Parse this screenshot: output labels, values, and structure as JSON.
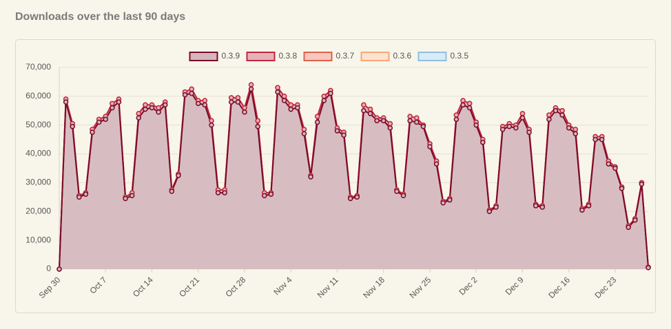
{
  "chart_data": {
    "type": "stacked_area",
    "title": "Downloads over the last 90 days",
    "categories": [
      "Sep 30",
      null,
      null,
      null,
      null,
      null,
      null,
      "Oct 7",
      null,
      null,
      null,
      null,
      null,
      null,
      "Oct 14",
      null,
      null,
      null,
      null,
      null,
      null,
      "Oct 21",
      null,
      null,
      null,
      null,
      null,
      null,
      "Oct 28",
      null,
      null,
      null,
      null,
      null,
      null,
      "Nov 4",
      null,
      null,
      null,
      null,
      null,
      null,
      "Nov 11",
      null,
      null,
      null,
      null,
      null,
      null,
      "Nov 18",
      null,
      null,
      null,
      null,
      null,
      null,
      "Nov 25",
      null,
      null,
      null,
      null,
      null,
      null,
      "Dec 2",
      null,
      null,
      null,
      null,
      null,
      null,
      "Dec 9",
      null,
      null,
      null,
      null,
      null,
      null,
      "Dec 16",
      null,
      null,
      null,
      null,
      null,
      null,
      "Dec 23",
      null,
      null,
      null,
      null,
      null
    ],
    "series": [
      {
        "name": "0.3.9",
        "color": "#7b0a2a",
        "fill": "#d3b7bc",
        "values": [
          0,
          58000,
          49500,
          25000,
          26000,
          47500,
          51000,
          52000,
          56000,
          58000,
          24500,
          25500,
          52500,
          55500,
          56000,
          54500,
          57000,
          27000,
          32500,
          60500,
          61000,
          57500,
          57000,
          50000,
          26500,
          26500,
          58000,
          58000,
          54500,
          62500,
          49500,
          25500,
          26000,
          61500,
          58500,
          55500,
          56000,
          47000,
          32000,
          51000,
          58500,
          61000,
          48000,
          46500,
          24500,
          25000,
          55000,
          54000,
          51500,
          51500,
          49000,
          27000,
          25500,
          51500,
          51000,
          49500,
          42500,
          36500,
          23000,
          24000,
          52000,
          57000,
          56000,
          50000,
          44000,
          20000,
          21500,
          48500,
          49500,
          49000,
          52500,
          47500,
          22000,
          21500,
          52000,
          55000,
          53500,
          49000,
          47000,
          20500,
          22000,
          45000,
          45000,
          36500,
          35000,
          28000,
          14500,
          17000,
          29500,
          500
        ]
      },
      {
        "name": "0.3.8",
        "color": "#c0283d",
        "fill": "#e6b2b9",
        "values": [
          0,
          1000,
          1000,
          500,
          500,
          1000,
          1000,
          1000,
          1500,
          1000,
          500,
          1000,
          1500,
          1500,
          1000,
          1500,
          1000,
          500,
          500,
          1000,
          1500,
          1000,
          1500,
          1500,
          1000,
          1000,
          1500,
          1500,
          1500,
          1500,
          2000,
          1000,
          500,
          1500,
          1500,
          1500,
          1000,
          1500,
          500,
          2000,
          1500,
          1000,
          1000,
          1000,
          500,
          500,
          2000,
          1500,
          1000,
          1000,
          1500,
          500,
          500,
          1500,
          1500,
          500,
          1000,
          1000,
          500,
          500,
          1500,
          1500,
          1500,
          1000,
          1000,
          500,
          500,
          1000,
          1000,
          1000,
          1500,
          1000,
          500,
          500,
          1500,
          1000,
          1500,
          1000,
          1500,
          500,
          500,
          1000,
          1000,
          1000,
          500,
          500,
          500,
          500,
          500,
          200
        ]
      },
      {
        "name": "0.3.7",
        "color": "#e0604a",
        "fill": "#f6c8bf",
        "values": [
          0,
          0,
          0,
          0,
          0,
          0,
          0,
          0,
          0,
          0,
          0,
          0,
          0,
          0,
          0,
          0,
          0,
          0,
          0,
          0,
          0,
          0,
          0,
          0,
          0,
          0,
          0,
          0,
          0,
          0,
          0,
          0,
          0,
          0,
          0,
          0,
          0,
          0,
          0,
          0,
          0,
          0,
          0,
          0,
          0,
          0,
          0,
          0,
          0,
          0,
          0,
          0,
          0,
          0,
          0,
          0,
          0,
          0,
          0,
          0,
          0,
          0,
          0,
          0,
          0,
          0,
          0,
          0,
          0,
          0,
          0,
          0,
          0,
          0,
          0,
          0,
          0,
          0,
          0,
          0,
          0,
          0,
          0,
          0,
          0,
          0,
          0,
          0,
          0,
          0
        ]
      },
      {
        "name": "0.3.6",
        "color": "#f5a878",
        "fill": "#fde2cf",
        "values": [
          0,
          0,
          0,
          0,
          0,
          0,
          0,
          0,
          0,
          0,
          0,
          0,
          0,
          0,
          0,
          0,
          0,
          0,
          0,
          0,
          0,
          0,
          0,
          0,
          0,
          0,
          0,
          0,
          0,
          0,
          0,
          0,
          0,
          0,
          0,
          0,
          0,
          0,
          0,
          0,
          0,
          0,
          0,
          0,
          0,
          0,
          0,
          0,
          0,
          0,
          0,
          0,
          0,
          0,
          0,
          0,
          0,
          0,
          0,
          0,
          0,
          0,
          0,
          0,
          0,
          0,
          0,
          0,
          0,
          0,
          0,
          0,
          0,
          0,
          0,
          0,
          0,
          0,
          0,
          0,
          0,
          0,
          0,
          0,
          0,
          0,
          0,
          0,
          0,
          0
        ]
      },
      {
        "name": "0.3.5",
        "color": "#8fbfe0",
        "fill": "#d8ebf6",
        "values": [
          0,
          0,
          0,
          0,
          0,
          0,
          0,
          0,
          0,
          0,
          0,
          0,
          0,
          0,
          0,
          0,
          0,
          0,
          0,
          0,
          0,
          0,
          0,
          0,
          0,
          0,
          0,
          0,
          0,
          0,
          0,
          0,
          0,
          0,
          0,
          0,
          0,
          0,
          0,
          0,
          0,
          0,
          0,
          0,
          0,
          0,
          0,
          0,
          0,
          0,
          0,
          0,
          0,
          0,
          0,
          0,
          0,
          0,
          0,
          0,
          0,
          0,
          0,
          0,
          0,
          0,
          0,
          0,
          0,
          0,
          0,
          0,
          0,
          0,
          0,
          0,
          0,
          0,
          0,
          0,
          0,
          0,
          0,
          0,
          0,
          0,
          0,
          0,
          0,
          0
        ]
      }
    ],
    "ylim": [
      0,
      70000
    ],
    "yticks": [
      0,
      {
        "value": 10000,
        "label": "10,000"
      },
      {
        "value": 20000,
        "label": "20,000"
      },
      {
        "value": 30000,
        "label": "30,000"
      },
      {
        "value": 40000,
        "label": "40,000"
      },
      {
        "value": 50000,
        "label": "50,000"
      },
      {
        "value": 60000,
        "label": "60,000"
      },
      {
        "value": 70000,
        "label": "70,000"
      }
    ],
    "grid": true,
    "legend": "top"
  }
}
